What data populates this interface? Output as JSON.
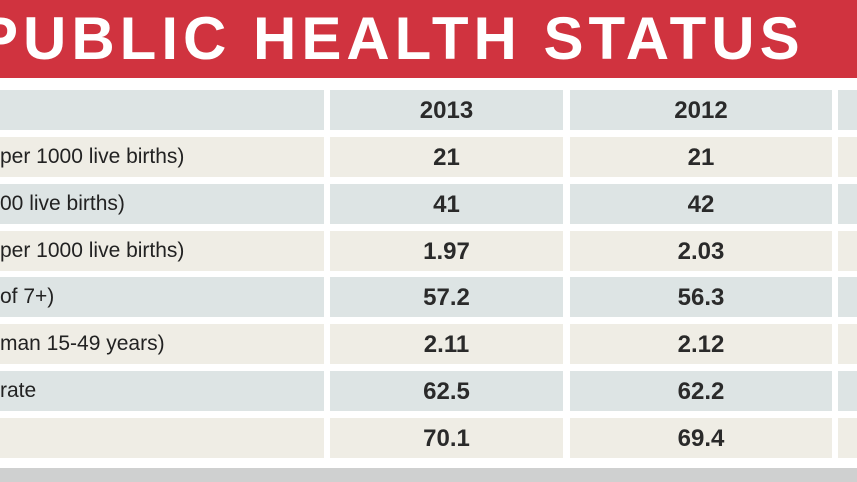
{
  "title": "PUBLIC HEALTH STATUS",
  "table": {
    "columns": [
      "2013",
      "2012"
    ],
    "rows": [
      {
        "label": "per 1000 live births)",
        "values": [
          "21",
          "21"
        ]
      },
      {
        "label": "00 live births)",
        "values": [
          "41",
          "42"
        ]
      },
      {
        "label": "per 1000 live births)",
        "values": [
          "1.97",
          "2.03"
        ]
      },
      {
        "label": "of 7+)",
        "values": [
          "57.2",
          "56.3"
        ]
      },
      {
        "label": "man 15-49 years)",
        "values": [
          "2.11",
          "2.12"
        ]
      },
      {
        "label": "rate",
        "values": [
          "62.5",
          "62.2"
        ]
      },
      {
        "values": [
          "70.1",
          "69.4"
        ]
      }
    ]
  }
}
